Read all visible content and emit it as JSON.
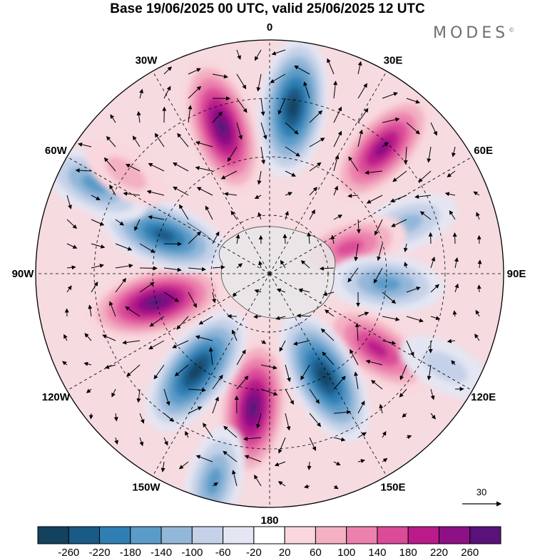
{
  "title": "Base 19/06/2025 00 UTC, valid 25/06/2025 12 UTC",
  "brand": "MODES",
  "brand_mark": "©",
  "longitude_labels": [
    {
      "text": "0",
      "lon": 0
    },
    {
      "text": "30E",
      "lon": 30
    },
    {
      "text": "60E",
      "lon": 60
    },
    {
      "text": "90E",
      "lon": 90
    },
    {
      "text": "120E",
      "lon": 120
    },
    {
      "text": "150E",
      "lon": 150
    },
    {
      "text": "180",
      "lon": 180
    },
    {
      "text": "150W",
      "lon": -150
    },
    {
      "text": "120W",
      "lon": -120
    },
    {
      "text": "90W",
      "lon": -90
    },
    {
      "text": "60W",
      "lon": -60
    },
    {
      "text": "30W",
      "lon": -30
    }
  ],
  "vector_reference": {
    "label": "30"
  },
  "colorbar": {
    "levels": [
      "-260",
      "-220",
      "-180",
      "-140",
      "-100",
      "-60",
      "-20",
      "20",
      "60",
      "100",
      "140",
      "180",
      "220",
      "260"
    ],
    "colors": [
      "#12425e",
      "#1a5a86",
      "#2f7fb4",
      "#5b9bc8",
      "#93b7d9",
      "#c4d1e8",
      "#e5e6f3",
      "#ffffff",
      "#f9d7dd",
      "#f3b1c3",
      "#ec81ad",
      "#db4b98",
      "#bb1a8b",
      "#8d1085",
      "#581279"
    ]
  },
  "anomaly_centers": [
    {
      "lon": 8,
      "r": 0.72,
      "sign": -1,
      "strength": 1.0
    },
    {
      "lon": -18,
      "r": 0.66,
      "sign": 1,
      "strength": 1.0
    },
    {
      "lon": 42,
      "r": 0.72,
      "sign": 1,
      "strength": 0.85
    },
    {
      "lon": 70,
      "r": 0.62,
      "sign": -1,
      "strength": 0.45
    },
    {
      "lon": 72,
      "r": 0.36,
      "sign": 1,
      "strength": 0.6
    },
    {
      "lon": 95,
      "r": 0.5,
      "sign": -1,
      "strength": 0.6
    },
    {
      "lon": 125,
      "r": 0.56,
      "sign": 1,
      "strength": 0.75
    },
    {
      "lon": 152,
      "r": 0.5,
      "sign": -1,
      "strength": 1.0
    },
    {
      "lon": -173,
      "r": 0.58,
      "sign": 1,
      "strength": 1.0
    },
    {
      "lon": -143,
      "r": 0.52,
      "sign": -1,
      "strength": 1.0
    },
    {
      "lon": -104,
      "r": 0.5,
      "sign": 1,
      "strength": 1.0
    },
    {
      "lon": -70,
      "r": 0.48,
      "sign": -1,
      "strength": 0.85
    },
    {
      "lon": -63,
      "r": 0.84,
      "sign": -1,
      "strength": 0.6
    },
    {
      "lon": -165,
      "r": 0.92,
      "sign": -1,
      "strength": 0.55
    },
    {
      "lon": 118,
      "r": 0.85,
      "sign": -1,
      "strength": 0.3
    },
    {
      "lon": -55,
      "r": 0.75,
      "sign": 1,
      "strength": 0.25
    }
  ]
}
